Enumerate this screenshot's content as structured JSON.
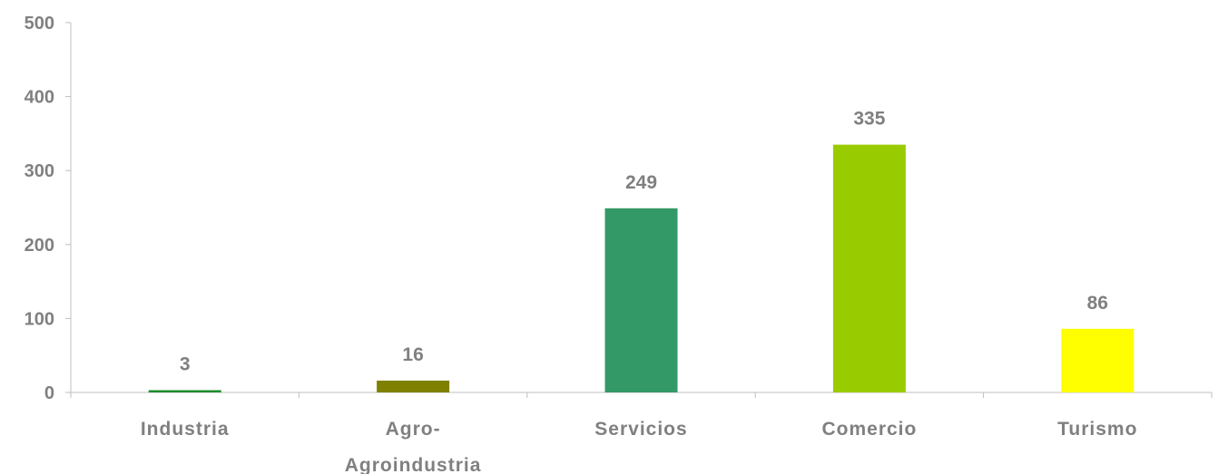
{
  "chart_data": {
    "type": "bar",
    "categories": [
      "Industria",
      "Agro-Agroindustria",
      "Servicios",
      "Comercio",
      "Turismo"
    ],
    "category_label_lines": [
      [
        "Industria"
      ],
      [
        "Agro-",
        "Agroindustria"
      ],
      [
        "Servicios"
      ],
      [
        "Comercio"
      ],
      [
        "Turismo"
      ]
    ],
    "values": [
      3,
      16,
      249,
      335,
      86
    ],
    "colors": [
      "#1e8c2e",
      "#808000",
      "#339966",
      "#99cc00",
      "#ffff00"
    ],
    "ylim": [
      0,
      500
    ],
    "yticks": [
      0,
      100,
      200,
      300,
      400,
      500
    ],
    "title": "",
    "xlabel": "",
    "ylabel": "",
    "grid": false,
    "legend": "none",
    "data_labels": true,
    "text_color": "#808080",
    "axis_color": "#bfbfbf"
  }
}
